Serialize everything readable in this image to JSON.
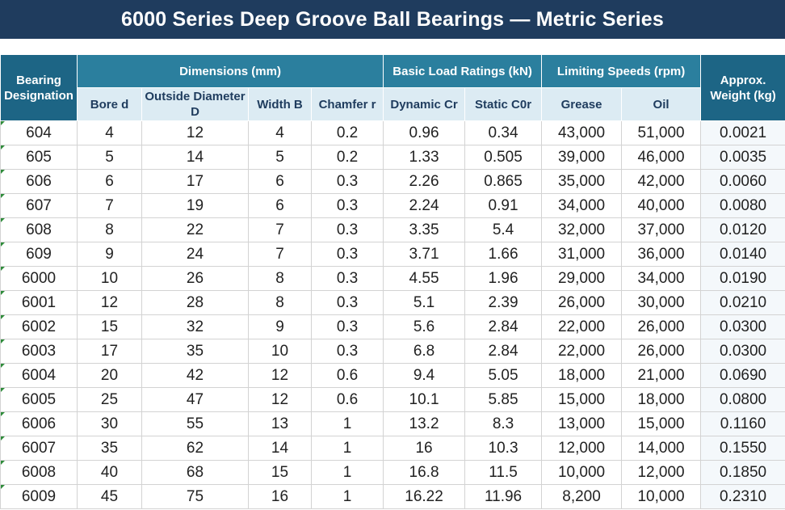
{
  "title": "6000 Series Deep Groove Ball Bearings — Metric Series",
  "headers": {
    "designation": "Bearing Designation",
    "dimensions": "Dimensions (mm)",
    "load_ratings": "Basic Load Ratings (kN)",
    "speeds": "Limiting Speeds (rpm)",
    "weight": "Approx. Weight (kg)",
    "bore": "Bore d",
    "outside_diameter": "Outside Diameter D",
    "width": "Width B",
    "chamfer": "Chamfer r",
    "dynamic": "Dynamic Cr",
    "static": "Static C0r",
    "grease": "Grease",
    "oil": "Oil"
  },
  "rows": [
    [
      "604",
      "4",
      "12",
      "4",
      "0.2",
      "0.96",
      "0.34",
      "43,000",
      "51,000",
      "0.0021"
    ],
    [
      "605",
      "5",
      "14",
      "5",
      "0.2",
      "1.33",
      "0.505",
      "39,000",
      "46,000",
      "0.0035"
    ],
    [
      "606",
      "6",
      "17",
      "6",
      "0.3",
      "2.26",
      "0.865",
      "35,000",
      "42,000",
      "0.0060"
    ],
    [
      "607",
      "7",
      "19",
      "6",
      "0.3",
      "2.24",
      "0.91",
      "34,000",
      "40,000",
      "0.0080"
    ],
    [
      "608",
      "8",
      "22",
      "7",
      "0.3",
      "3.35",
      "5.4",
      "32,000",
      "37,000",
      "0.0120"
    ],
    [
      "609",
      "9",
      "24",
      "7",
      "0.3",
      "3.71",
      "1.66",
      "31,000",
      "36,000",
      "0.0140"
    ],
    [
      "6000",
      "10",
      "26",
      "8",
      "0.3",
      "4.55",
      "1.96",
      "29,000",
      "34,000",
      "0.0190"
    ],
    [
      "6001",
      "12",
      "28",
      "8",
      "0.3",
      "5.1",
      "2.39",
      "26,000",
      "30,000",
      "0.0210"
    ],
    [
      "6002",
      "15",
      "32",
      "9",
      "0.3",
      "5.6",
      "2.84",
      "22,000",
      "26,000",
      "0.0300"
    ],
    [
      "6003",
      "17",
      "35",
      "10",
      "0.3",
      "6.8",
      "2.84",
      "22,000",
      "26,000",
      "0.0300"
    ],
    [
      "6004",
      "20",
      "42",
      "12",
      "0.6",
      "9.4",
      "5.05",
      "18,000",
      "21,000",
      "0.0690"
    ],
    [
      "6005",
      "25",
      "47",
      "12",
      "0.6",
      "10.1",
      "5.85",
      "15,000",
      "18,000",
      "0.0800"
    ],
    [
      "6006",
      "30",
      "55",
      "13",
      "1",
      "13.2",
      "8.3",
      "13,000",
      "15,000",
      "0.1160"
    ],
    [
      "6007",
      "35",
      "62",
      "14",
      "1",
      "16",
      "10.3",
      "12,000",
      "14,000",
      "0.1550"
    ],
    [
      "6008",
      "40",
      "68",
      "15",
      "1",
      "16.8",
      "11.5",
      "10,000",
      "12,000",
      "0.1850"
    ],
    [
      "6009",
      "45",
      "75",
      "16",
      "1",
      "16.22",
      "11.96",
      "8,200",
      "10,000",
      "0.2310"
    ]
  ]
}
